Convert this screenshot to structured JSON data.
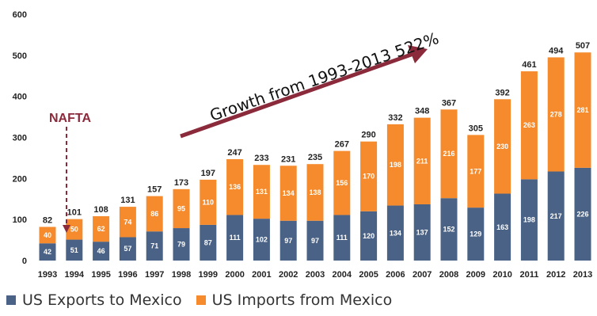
{
  "chart_data": {
    "type": "bar",
    "stacked": true,
    "title": "",
    "xlabel": "",
    "ylabel": "",
    "ylim": [
      0,
      600
    ],
    "yticks": [
      0,
      100,
      200,
      300,
      400,
      500,
      600
    ],
    "grid": false,
    "legend_position": "bottom-left",
    "categories": [
      "1993",
      "1994",
      "1995",
      "1996",
      "1997",
      "1998",
      "1999",
      "2000",
      "2001",
      "2002",
      "2003",
      "2004",
      "2005",
      "2006",
      "2007",
      "2008",
      "2009",
      "2010",
      "2011",
      "2012",
      "2013"
    ],
    "series": [
      {
        "name": "US Exports to Mexico",
        "color": "#4a6285",
        "values": [
          42,
          51,
          46,
          57,
          71,
          79,
          87,
          111,
          102,
          97,
          97,
          111,
          120,
          134,
          137,
          152,
          129,
          163,
          198,
          217,
          226
        ]
      },
      {
        "name": "US Imports from Mexico",
        "color": "#f58b2c",
        "values": [
          40,
          50,
          62,
          74,
          86,
          95,
          110,
          136,
          131,
          134,
          138,
          156,
          170,
          198,
          211,
          216,
          177,
          230,
          263,
          278,
          281
        ]
      }
    ],
    "totals": [
      82,
      101,
      108,
      131,
      157,
      173,
      197,
      247,
      233,
      231,
      235,
      267,
      290,
      332,
      348,
      367,
      305,
      392,
      461,
      494,
      507
    ],
    "annotations": {
      "nafta": {
        "text": "NAFTA",
        "color": "#8b2a3a",
        "year": "1994"
      },
      "growth": {
        "text": "Growth from 1993-2013  522%",
        "arrow_color": "#8b2a3a"
      }
    }
  }
}
